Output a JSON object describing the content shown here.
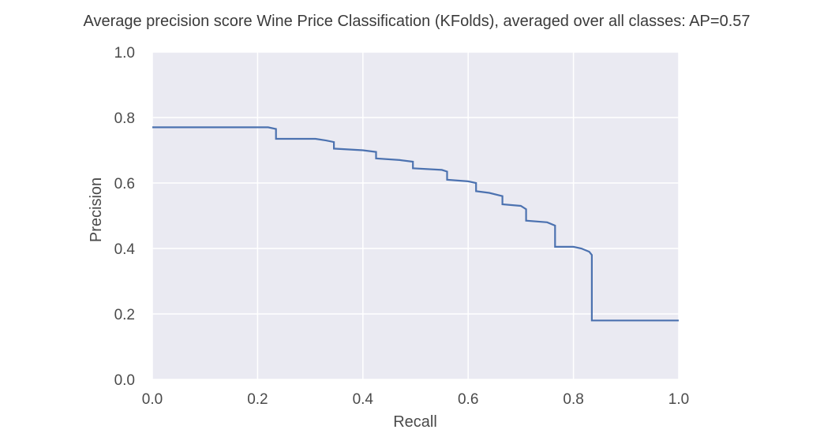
{
  "chart_data": {
    "type": "line",
    "title": "Average precision score Wine Price Classification (KFolds), averaged over all classes: AP=0.57",
    "xlabel": "Recall",
    "ylabel": "Precision",
    "xlim": [
      0.0,
      1.0
    ],
    "ylim": [
      0.0,
      1.0
    ],
    "xticks": [
      "0.0",
      "0.2",
      "0.4",
      "0.6",
      "0.8",
      "1.0"
    ],
    "yticks": [
      "0.0",
      "0.2",
      "0.4",
      "0.6",
      "0.8",
      "1.0"
    ],
    "grid": true,
    "background_color": "#eaeaf2",
    "grid_color": "#ffffff",
    "line_color": "#4c72b0",
    "step_curve": {
      "recall": [
        0.0,
        0.22,
        0.235,
        0.235,
        0.31,
        0.33,
        0.345,
        0.345,
        0.4,
        0.425,
        0.425,
        0.47,
        0.495,
        0.495,
        0.55,
        0.56,
        0.56,
        0.6,
        0.615,
        0.615,
        0.64,
        0.665,
        0.665,
        0.7,
        0.71,
        0.71,
        0.75,
        0.765,
        0.765,
        0.8,
        0.815,
        0.83,
        0.835,
        0.835,
        1.0
      ],
      "precision": [
        0.77,
        0.77,
        0.765,
        0.735,
        0.735,
        0.73,
        0.725,
        0.705,
        0.7,
        0.695,
        0.675,
        0.67,
        0.665,
        0.645,
        0.64,
        0.635,
        0.61,
        0.605,
        0.6,
        0.575,
        0.57,
        0.56,
        0.535,
        0.53,
        0.52,
        0.485,
        0.48,
        0.47,
        0.405,
        0.405,
        0.4,
        0.39,
        0.38,
        0.18,
        0.18
      ]
    }
  }
}
